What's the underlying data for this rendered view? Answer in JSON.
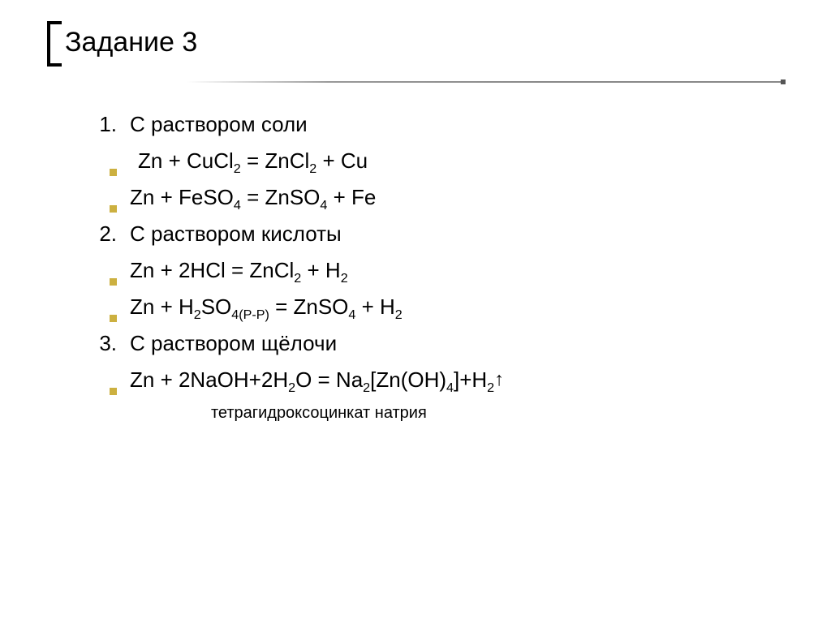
{
  "title": "Задание 3",
  "accent_bullet_color": "#ccb040",
  "divider_color": "#888888",
  "text_color": "#000000",
  "background_color": "#ffffff",
  "title_fontsize": 34,
  "body_fontsize": 26,
  "rows": [
    {
      "marker": "1.",
      "html": "С раствором соли"
    },
    {
      "marker": "sq",
      "indent": true,
      "html": " Zn + CuCl<sub>2</sub> = ZnCl<sub>2</sub> + Cu"
    },
    {
      "marker": "sq",
      "html": "Zn + FeSO<sub>4</sub> = ZnSO<sub>4</sub> + Fe"
    },
    {
      "marker": "2.",
      "html": "С раствором кислоты"
    },
    {
      "marker": "sq",
      "html": "Zn + 2HCl = ZnCl<sub>2</sub> + H<sub>2</sub>"
    },
    {
      "marker": "sq",
      "html": "Zn + H<sub>2</sub>SO<sub>4(P-P)</sub> = ZnSO<sub>4</sub> + H<sub>2</sub>"
    },
    {
      "marker": "3.",
      "html": "С раствором щёлочи"
    },
    {
      "marker": "sq",
      "html": "Zn + 2NaOH+2H<sub>2</sub>O = Na<sub>2</sub>[Zn(OH)<sub>4</sub>]+H<sub>2</sub><span class=\"arrow-up\">↑</span>"
    }
  ],
  "footnote": "тетрагидроксоцинкат натрия",
  "footnote_fontsize": 20
}
